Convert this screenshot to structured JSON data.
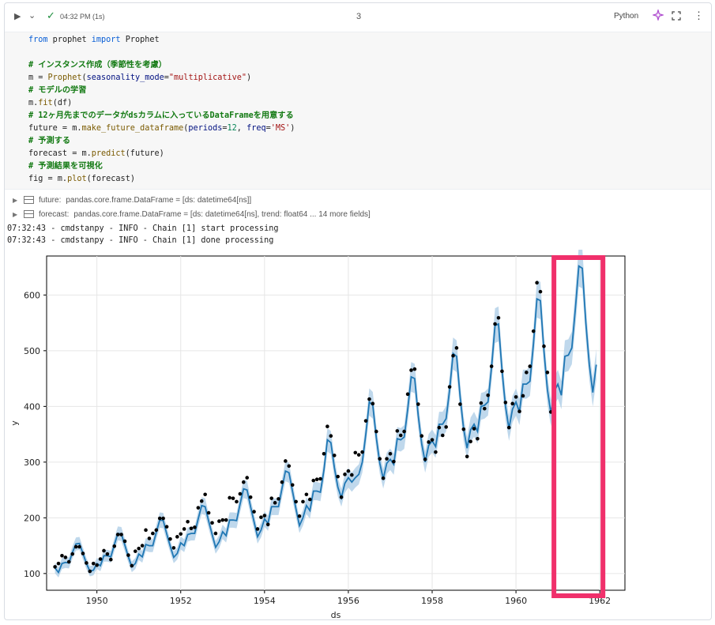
{
  "toolbar": {
    "run_icon": "play-icon",
    "status_time": "04:32 PM (1s)",
    "cell_number": "3",
    "language": "Python"
  },
  "code_lines": [
    "from prophet import Prophet",
    "",
    "# インスタンス作成（季節性を考慮）",
    "m = Prophet(seasonality_mode=\"multiplicative\")",
    "# モデルの学習",
    "m.fit(df)",
    "# 12ヶ月先までのデータがdsカラムに入っているDataFrameを用意する",
    "future = m.make_future_dataframe(periods=12, freq='MS')",
    "# 予測する",
    "forecast = m.predict(future)",
    "# 予測結果を可視化",
    "fig = m.plot(forecast)"
  ],
  "variables": [
    {
      "name": "future:",
      "detail": "pandas.core.frame.DataFrame = [ds: datetime64[ns]]"
    },
    {
      "name": "forecast:",
      "detail": "pandas.core.frame.DataFrame = [ds: datetime64[ns], trend: float64 ... 14 more fields]"
    }
  ],
  "logs": [
    "07:32:43 - cmdstanpy - INFO - Chain [1] start processing",
    "07:32:43 - cmdstanpy - INFO - Chain [1] done processing"
  ],
  "chart_data": {
    "type": "line",
    "title": "",
    "xlabel": "ds",
    "ylabel": "y",
    "xlim": [
      1948.8,
      1962.6
    ],
    "ylim": [
      70,
      670
    ],
    "xticks": [
      1950,
      1952,
      1954,
      1956,
      1958,
      1960,
      1962
    ],
    "yticks": [
      100,
      200,
      300,
      400,
      500,
      600
    ],
    "grid": true,
    "colors": {
      "line": "#1f77b4",
      "band": "#a9cbe6",
      "points": "#000000",
      "highlight": "#f0306b"
    },
    "highlight_range": [
      1961.0,
      1962.0
    ],
    "forecast": [
      {
        "x": 1949.0,
        "y": 110
      },
      {
        "x": 1949.083,
        "y": 102
      },
      {
        "x": 1949.167,
        "y": 118
      },
      {
        "x": 1949.25,
        "y": 120
      },
      {
        "x": 1949.333,
        "y": 119
      },
      {
        "x": 1949.417,
        "y": 138
      },
      {
        "x": 1949.5,
        "y": 153
      },
      {
        "x": 1949.583,
        "y": 154
      },
      {
        "x": 1949.667,
        "y": 136
      },
      {
        "x": 1949.75,
        "y": 118
      },
      {
        "x": 1949.833,
        "y": 104
      },
      {
        "x": 1949.917,
        "y": 106
      },
      {
        "x": 1950.0,
        "y": 118
      },
      {
        "x": 1950.083,
        "y": 114
      },
      {
        "x": 1950.167,
        "y": 132
      },
      {
        "x": 1950.25,
        "y": 132
      },
      {
        "x": 1950.333,
        "y": 130
      },
      {
        "x": 1950.417,
        "y": 152
      },
      {
        "x": 1950.5,
        "y": 172
      },
      {
        "x": 1950.583,
        "y": 171
      },
      {
        "x": 1950.667,
        "y": 151
      },
      {
        "x": 1950.75,
        "y": 130
      },
      {
        "x": 1950.833,
        "y": 112
      },
      {
        "x": 1950.917,
        "y": 118
      },
      {
        "x": 1951.0,
        "y": 135
      },
      {
        "x": 1951.083,
        "y": 130
      },
      {
        "x": 1951.167,
        "y": 152
      },
      {
        "x": 1951.25,
        "y": 150
      },
      {
        "x": 1951.333,
        "y": 150
      },
      {
        "x": 1951.417,
        "y": 174
      },
      {
        "x": 1951.5,
        "y": 196
      },
      {
        "x": 1951.583,
        "y": 195
      },
      {
        "x": 1951.667,
        "y": 171
      },
      {
        "x": 1951.75,
        "y": 149
      },
      {
        "x": 1951.833,
        "y": 129
      },
      {
        "x": 1951.917,
        "y": 136
      },
      {
        "x": 1952.0,
        "y": 155
      },
      {
        "x": 1952.083,
        "y": 150
      },
      {
        "x": 1952.167,
        "y": 170
      },
      {
        "x": 1952.25,
        "y": 172
      },
      {
        "x": 1952.333,
        "y": 172
      },
      {
        "x": 1952.417,
        "y": 198
      },
      {
        "x": 1952.5,
        "y": 222
      },
      {
        "x": 1952.583,
        "y": 220
      },
      {
        "x": 1952.667,
        "y": 194
      },
      {
        "x": 1952.75,
        "y": 170
      },
      {
        "x": 1952.833,
        "y": 147
      },
      {
        "x": 1952.917,
        "y": 157
      },
      {
        "x": 1953.0,
        "y": 175
      },
      {
        "x": 1953.083,
        "y": 168
      },
      {
        "x": 1953.167,
        "y": 196
      },
      {
        "x": 1953.25,
        "y": 196
      },
      {
        "x": 1953.333,
        "y": 195
      },
      {
        "x": 1953.417,
        "y": 225
      },
      {
        "x": 1953.5,
        "y": 252
      },
      {
        "x": 1953.583,
        "y": 250
      },
      {
        "x": 1953.667,
        "y": 220
      },
      {
        "x": 1953.75,
        "y": 193
      },
      {
        "x": 1953.833,
        "y": 166
      },
      {
        "x": 1953.917,
        "y": 178
      },
      {
        "x": 1954.0,
        "y": 198
      },
      {
        "x": 1954.083,
        "y": 190
      },
      {
        "x": 1954.167,
        "y": 220
      },
      {
        "x": 1954.25,
        "y": 220
      },
      {
        "x": 1954.333,
        "y": 220
      },
      {
        "x": 1954.417,
        "y": 253
      },
      {
        "x": 1954.5,
        "y": 284
      },
      {
        "x": 1954.583,
        "y": 281
      },
      {
        "x": 1954.667,
        "y": 248
      },
      {
        "x": 1954.75,
        "y": 216
      },
      {
        "x": 1954.833,
        "y": 186
      },
      {
        "x": 1954.917,
        "y": 200
      },
      {
        "x": 1955.0,
        "y": 222
      },
      {
        "x": 1955.083,
        "y": 213
      },
      {
        "x": 1955.167,
        "y": 248
      },
      {
        "x": 1955.25,
        "y": 248
      },
      {
        "x": 1955.333,
        "y": 246
      },
      {
        "x": 1955.417,
        "y": 285
      },
      {
        "x": 1955.5,
        "y": 340
      },
      {
        "x": 1955.583,
        "y": 335
      },
      {
        "x": 1955.667,
        "y": 290
      },
      {
        "x": 1955.75,
        "y": 255
      },
      {
        "x": 1955.833,
        "y": 236
      },
      {
        "x": 1955.917,
        "y": 262
      },
      {
        "x": 1956.0,
        "y": 272
      },
      {
        "x": 1956.083,
        "y": 264
      },
      {
        "x": 1956.167,
        "y": 272
      },
      {
        "x": 1956.25,
        "y": 278
      },
      {
        "x": 1956.333,
        "y": 300
      },
      {
        "x": 1956.417,
        "y": 350
      },
      {
        "x": 1956.5,
        "y": 408
      },
      {
        "x": 1956.583,
        "y": 402
      },
      {
        "x": 1956.667,
        "y": 344
      },
      {
        "x": 1956.75,
        "y": 298
      },
      {
        "x": 1956.833,
        "y": 270
      },
      {
        "x": 1956.917,
        "y": 298
      },
      {
        "x": 1957.0,
        "y": 305
      },
      {
        "x": 1957.083,
        "y": 296
      },
      {
        "x": 1957.167,
        "y": 342
      },
      {
        "x": 1957.25,
        "y": 340
      },
      {
        "x": 1957.333,
        "y": 345
      },
      {
        "x": 1957.417,
        "y": 395
      },
      {
        "x": 1957.5,
        "y": 453
      },
      {
        "x": 1957.583,
        "y": 450
      },
      {
        "x": 1957.667,
        "y": 384
      },
      {
        "x": 1957.75,
        "y": 333
      },
      {
        "x": 1957.833,
        "y": 300
      },
      {
        "x": 1957.917,
        "y": 330
      },
      {
        "x": 1958.0,
        "y": 338
      },
      {
        "x": 1958.083,
        "y": 328
      },
      {
        "x": 1958.167,
        "y": 368
      },
      {
        "x": 1958.25,
        "y": 368
      },
      {
        "x": 1958.333,
        "y": 378
      },
      {
        "x": 1958.417,
        "y": 430
      },
      {
        "x": 1958.5,
        "y": 495
      },
      {
        "x": 1958.583,
        "y": 490
      },
      {
        "x": 1958.667,
        "y": 418
      },
      {
        "x": 1958.75,
        "y": 360
      },
      {
        "x": 1958.833,
        "y": 325
      },
      {
        "x": 1958.917,
        "y": 358
      },
      {
        "x": 1959.0,
        "y": 368
      },
      {
        "x": 1959.083,
        "y": 355
      },
      {
        "x": 1959.167,
        "y": 400
      },
      {
        "x": 1959.25,
        "y": 402
      },
      {
        "x": 1959.333,
        "y": 408
      },
      {
        "x": 1959.417,
        "y": 470
      },
      {
        "x": 1959.5,
        "y": 545
      },
      {
        "x": 1959.583,
        "y": 548
      },
      {
        "x": 1959.667,
        "y": 465
      },
      {
        "x": 1959.75,
        "y": 400
      },
      {
        "x": 1959.833,
        "y": 360
      },
      {
        "x": 1959.917,
        "y": 395
      },
      {
        "x": 1960.0,
        "y": 408
      },
      {
        "x": 1960.083,
        "y": 390
      },
      {
        "x": 1960.167,
        "y": 440
      },
      {
        "x": 1960.25,
        "y": 440
      },
      {
        "x": 1960.333,
        "y": 445
      },
      {
        "x": 1960.417,
        "y": 512
      },
      {
        "x": 1960.5,
        "y": 593
      },
      {
        "x": 1960.583,
        "y": 590
      },
      {
        "x": 1960.667,
        "y": 500
      },
      {
        "x": 1960.75,
        "y": 430
      },
      {
        "x": 1960.833,
        "y": 388
      },
      {
        "x": 1960.917,
        "y": 428
      },
      {
        "x": 1961.0,
        "y": 440
      },
      {
        "x": 1961.083,
        "y": 420
      },
      {
        "x": 1961.167,
        "y": 490
      },
      {
        "x": 1961.25,
        "y": 492
      },
      {
        "x": 1961.333,
        "y": 505
      },
      {
        "x": 1961.417,
        "y": 575
      },
      {
        "x": 1961.5,
        "y": 652
      },
      {
        "x": 1961.583,
        "y": 648
      },
      {
        "x": 1961.667,
        "y": 550
      },
      {
        "x": 1961.75,
        "y": 475
      },
      {
        "x": 1961.833,
        "y": 425
      },
      {
        "x": 1961.917,
        "y": 475
      }
    ],
    "actual": [
      {
        "x": 1949.0,
        "y": 112
      },
      {
        "x": 1949.083,
        "y": 118
      },
      {
        "x": 1949.167,
        "y": 132
      },
      {
        "x": 1949.25,
        "y": 129
      },
      {
        "x": 1949.333,
        "y": 121
      },
      {
        "x": 1949.417,
        "y": 135
      },
      {
        "x": 1949.5,
        "y": 148
      },
      {
        "x": 1949.583,
        "y": 148
      },
      {
        "x": 1949.667,
        "y": 136
      },
      {
        "x": 1949.75,
        "y": 119
      },
      {
        "x": 1949.833,
        "y": 104
      },
      {
        "x": 1949.917,
        "y": 118
      },
      {
        "x": 1950.0,
        "y": 115
      },
      {
        "x": 1950.083,
        "y": 126
      },
      {
        "x": 1950.167,
        "y": 141
      },
      {
        "x": 1950.25,
        "y": 135
      },
      {
        "x": 1950.333,
        "y": 125
      },
      {
        "x": 1950.417,
        "y": 149
      },
      {
        "x": 1950.5,
        "y": 170
      },
      {
        "x": 1950.583,
        "y": 170
      },
      {
        "x": 1950.667,
        "y": 158
      },
      {
        "x": 1950.75,
        "y": 133
      },
      {
        "x": 1950.833,
        "y": 114
      },
      {
        "x": 1950.917,
        "y": 140
      },
      {
        "x": 1951.0,
        "y": 145
      },
      {
        "x": 1951.083,
        "y": 150
      },
      {
        "x": 1951.167,
        "y": 178
      },
      {
        "x": 1951.25,
        "y": 163
      },
      {
        "x": 1951.333,
        "y": 172
      },
      {
        "x": 1951.417,
        "y": 178
      },
      {
        "x": 1951.5,
        "y": 199
      },
      {
        "x": 1951.583,
        "y": 199
      },
      {
        "x": 1951.667,
        "y": 184
      },
      {
        "x": 1951.75,
        "y": 162
      },
      {
        "x": 1951.833,
        "y": 146
      },
      {
        "x": 1951.917,
        "y": 166
      },
      {
        "x": 1952.0,
        "y": 171
      },
      {
        "x": 1952.083,
        "y": 180
      },
      {
        "x": 1952.167,
        "y": 193
      },
      {
        "x": 1952.25,
        "y": 181
      },
      {
        "x": 1952.333,
        "y": 183
      },
      {
        "x": 1952.417,
        "y": 218
      },
      {
        "x": 1952.5,
        "y": 230
      },
      {
        "x": 1952.583,
        "y": 242
      },
      {
        "x": 1952.667,
        "y": 209
      },
      {
        "x": 1952.75,
        "y": 191
      },
      {
        "x": 1952.833,
        "y": 172
      },
      {
        "x": 1952.917,
        "y": 194
      },
      {
        "x": 1953.0,
        "y": 196
      },
      {
        "x": 1953.083,
        "y": 196
      },
      {
        "x": 1953.167,
        "y": 236
      },
      {
        "x": 1953.25,
        "y": 235
      },
      {
        "x": 1953.333,
        "y": 229
      },
      {
        "x": 1953.417,
        "y": 243
      },
      {
        "x": 1953.5,
        "y": 264
      },
      {
        "x": 1953.583,
        "y": 272
      },
      {
        "x": 1953.667,
        "y": 237
      },
      {
        "x": 1953.75,
        "y": 211
      },
      {
        "x": 1953.833,
        "y": 180
      },
      {
        "x": 1953.917,
        "y": 201
      },
      {
        "x": 1954.0,
        "y": 204
      },
      {
        "x": 1954.083,
        "y": 188
      },
      {
        "x": 1954.167,
        "y": 235
      },
      {
        "x": 1954.25,
        "y": 227
      },
      {
        "x": 1954.333,
        "y": 234
      },
      {
        "x": 1954.417,
        "y": 264
      },
      {
        "x": 1954.5,
        "y": 302
      },
      {
        "x": 1954.583,
        "y": 293
      },
      {
        "x": 1954.667,
        "y": 259
      },
      {
        "x": 1954.75,
        "y": 229
      },
      {
        "x": 1954.833,
        "y": 203
      },
      {
        "x": 1954.917,
        "y": 229
      },
      {
        "x": 1955.0,
        "y": 242
      },
      {
        "x": 1955.083,
        "y": 233
      },
      {
        "x": 1955.167,
        "y": 267
      },
      {
        "x": 1955.25,
        "y": 269
      },
      {
        "x": 1955.333,
        "y": 270
      },
      {
        "x": 1955.417,
        "y": 315
      },
      {
        "x": 1955.5,
        "y": 364
      },
      {
        "x": 1955.583,
        "y": 347
      },
      {
        "x": 1955.667,
        "y": 312
      },
      {
        "x": 1955.75,
        "y": 274
      },
      {
        "x": 1955.833,
        "y": 237
      },
      {
        "x": 1955.917,
        "y": 278
      },
      {
        "x": 1956.0,
        "y": 284
      },
      {
        "x": 1956.083,
        "y": 277
      },
      {
        "x": 1956.167,
        "y": 317
      },
      {
        "x": 1956.25,
        "y": 313
      },
      {
        "x": 1956.333,
        "y": 318
      },
      {
        "x": 1956.417,
        "y": 374
      },
      {
        "x": 1956.5,
        "y": 413
      },
      {
        "x": 1956.583,
        "y": 405
      },
      {
        "x": 1956.667,
        "y": 355
      },
      {
        "x": 1956.75,
        "y": 306
      },
      {
        "x": 1956.833,
        "y": 271
      },
      {
        "x": 1956.917,
        "y": 306
      },
      {
        "x": 1957.0,
        "y": 315
      },
      {
        "x": 1957.083,
        "y": 301
      },
      {
        "x": 1957.167,
        "y": 356
      },
      {
        "x": 1957.25,
        "y": 348
      },
      {
        "x": 1957.333,
        "y": 355
      },
      {
        "x": 1957.417,
        "y": 422
      },
      {
        "x": 1957.5,
        "y": 465
      },
      {
        "x": 1957.583,
        "y": 467
      },
      {
        "x": 1957.667,
        "y": 404
      },
      {
        "x": 1957.75,
        "y": 347
      },
      {
        "x": 1957.833,
        "y": 305
      },
      {
        "x": 1957.917,
        "y": 336
      },
      {
        "x": 1958.0,
        "y": 340
      },
      {
        "x": 1958.083,
        "y": 318
      },
      {
        "x": 1958.167,
        "y": 362
      },
      {
        "x": 1958.25,
        "y": 348
      },
      {
        "x": 1958.333,
        "y": 363
      },
      {
        "x": 1958.417,
        "y": 435
      },
      {
        "x": 1958.5,
        "y": 491
      },
      {
        "x": 1958.583,
        "y": 505
      },
      {
        "x": 1958.667,
        "y": 404
      },
      {
        "x": 1958.75,
        "y": 359
      },
      {
        "x": 1958.833,
        "y": 310
      },
      {
        "x": 1958.917,
        "y": 337
      },
      {
        "x": 1959.0,
        "y": 360
      },
      {
        "x": 1959.083,
        "y": 342
      },
      {
        "x": 1959.167,
        "y": 406
      },
      {
        "x": 1959.25,
        "y": 396
      },
      {
        "x": 1959.333,
        "y": 420
      },
      {
        "x": 1959.417,
        "y": 472
      },
      {
        "x": 1959.5,
        "y": 548
      },
      {
        "x": 1959.583,
        "y": 559
      },
      {
        "x": 1959.667,
        "y": 463
      },
      {
        "x": 1959.75,
        "y": 407
      },
      {
        "x": 1959.833,
        "y": 362
      },
      {
        "x": 1959.917,
        "y": 405
      },
      {
        "x": 1960.0,
        "y": 417
      },
      {
        "x": 1960.083,
        "y": 391
      },
      {
        "x": 1960.167,
        "y": 419
      },
      {
        "x": 1960.25,
        "y": 461
      },
      {
        "x": 1960.333,
        "y": 472
      },
      {
        "x": 1960.417,
        "y": 535
      },
      {
        "x": 1960.5,
        "y": 622
      },
      {
        "x": 1960.583,
        "y": 606
      },
      {
        "x": 1960.667,
        "y": 508
      },
      {
        "x": 1960.75,
        "y": 461
      },
      {
        "x": 1960.833,
        "y": 390
      },
      {
        "x": 1960.917,
        "y": 432
      }
    ]
  }
}
